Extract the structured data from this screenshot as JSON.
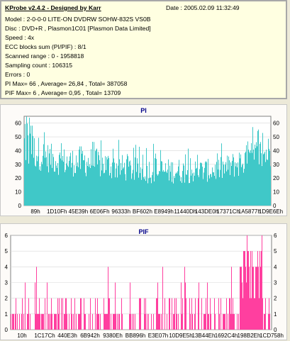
{
  "info": {
    "title": "KProbe v2.4.2 - Designed by Karr",
    "date": "Date : 2005.02.09 11:32:49",
    "model": "Model : 2-0-0-0 LITE-ON DVDRW SOHW-832S  VS0B",
    "disc": "Disc : DVD+R , Plasmon1C01 [Plasmon Data Limited]",
    "speed": "Speed : 4x",
    "ecc": "ECC blocks sum (PI/PIF) : 8/1",
    "scanned": "Scanned range : 0 - 1958818",
    "sampling": "Sampling count : 106315",
    "errors": "Errors : 0",
    "pi_stats": "PI Max= 66 , Average= 26,84 , Total= 387058",
    "pif_stats": "PIF Max= 6 , Average= 0,95 , Total= 13709"
  },
  "pi_chart": {
    "title": "PI",
    "color": "#40c8c8",
    "type": "area"
  },
  "pif_chart": {
    "title": "PIF",
    "color": "#ff3f9f",
    "type": "bar"
  },
  "chart_data": [
    {
      "type": "area",
      "title": "PI",
      "ylim": [
        0,
        65
      ],
      "yticks": [
        0,
        10,
        20,
        30,
        40,
        50,
        60
      ],
      "xticks": [
        "89h",
        "1D10Fh",
        "45E39h",
        "6E06Fh",
        "96333h",
        "BF602h",
        "E8949h",
        "11440Dh",
        "143DE0h",
        "17371Ch",
        "1A5877h",
        "1D9E6Eh"
      ],
      "max": 66,
      "average": 26.84,
      "envelope": [
        60,
        52,
        46,
        43,
        42,
        44,
        42,
        40,
        38,
        36,
        34,
        36,
        34,
        35,
        33,
        34,
        34,
        36,
        40,
        45,
        50,
        52
      ],
      "floor": [
        28,
        26,
        24,
        22,
        21,
        21,
        20,
        19,
        18,
        17,
        16,
        16,
        16,
        16,
        16,
        17,
        17,
        18,
        20,
        22,
        24,
        26
      ]
    },
    {
      "type": "bar",
      "title": "PIF",
      "ylim": [
        0,
        6
      ],
      "yticks": [
        0,
        1,
        2,
        3,
        4,
        5,
        6
      ],
      "xticks": [
        "10h",
        "1C17Ch",
        "440E3h",
        "6B942h",
        "9380Eh",
        "BB896h",
        "E3E07h",
        "10D9E5h",
        "13B44Eh",
        "1692C4h",
        "198B2Eh",
        "1CD758h"
      ],
      "max": 6,
      "average": 0.95
    }
  ]
}
